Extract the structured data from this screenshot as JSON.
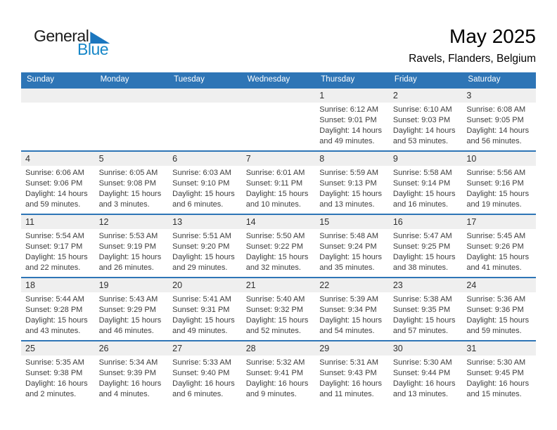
{
  "logo": {
    "general_text": "General",
    "blue_text": "Blue"
  },
  "header": {
    "title": "May 2025",
    "subtitle": "Ravels, Flanders, Belgium"
  },
  "colors": {
    "header_blue": "#2E75B6",
    "row_separator_blue": "#2E75B6",
    "day_band_gray": "#EFEFEF",
    "logo_text_blue": "#1787C8",
    "logo_triangle_blue": "#1B76BE",
    "body_text": "#3D3D3D"
  },
  "calendar": {
    "day_headers": [
      "Sunday",
      "Monday",
      "Tuesday",
      "Wednesday",
      "Thursday",
      "Friday",
      "Saturday"
    ],
    "weeks": [
      [
        null,
        null,
        null,
        null,
        {
          "date": "1",
          "lines": [
            "Sunrise: 6:12 AM",
            "Sunset: 9:01 PM",
            "Daylight: 14 hours",
            "and 49 minutes."
          ]
        },
        {
          "date": "2",
          "lines": [
            "Sunrise: 6:10 AM",
            "Sunset: 9:03 PM",
            "Daylight: 14 hours",
            "and 53 minutes."
          ]
        },
        {
          "date": "3",
          "lines": [
            "Sunrise: 6:08 AM",
            "Sunset: 9:05 PM",
            "Daylight: 14 hours",
            "and 56 minutes."
          ]
        }
      ],
      [
        {
          "date": "4",
          "lines": [
            "Sunrise: 6:06 AM",
            "Sunset: 9:06 PM",
            "Daylight: 14 hours",
            "and 59 minutes."
          ]
        },
        {
          "date": "5",
          "lines": [
            "Sunrise: 6:05 AM",
            "Sunset: 9:08 PM",
            "Daylight: 15 hours",
            "and 3 minutes."
          ]
        },
        {
          "date": "6",
          "lines": [
            "Sunrise: 6:03 AM",
            "Sunset: 9:10 PM",
            "Daylight: 15 hours",
            "and 6 minutes."
          ]
        },
        {
          "date": "7",
          "lines": [
            "Sunrise: 6:01 AM",
            "Sunset: 9:11 PM",
            "Daylight: 15 hours",
            "and 10 minutes."
          ]
        },
        {
          "date": "8",
          "lines": [
            "Sunrise: 5:59 AM",
            "Sunset: 9:13 PM",
            "Daylight: 15 hours",
            "and 13 minutes."
          ]
        },
        {
          "date": "9",
          "lines": [
            "Sunrise: 5:58 AM",
            "Sunset: 9:14 PM",
            "Daylight: 15 hours",
            "and 16 minutes."
          ]
        },
        {
          "date": "10",
          "lines": [
            "Sunrise: 5:56 AM",
            "Sunset: 9:16 PM",
            "Daylight: 15 hours",
            "and 19 minutes."
          ]
        }
      ],
      [
        {
          "date": "11",
          "lines": [
            "Sunrise: 5:54 AM",
            "Sunset: 9:17 PM",
            "Daylight: 15 hours",
            "and 22 minutes."
          ]
        },
        {
          "date": "12",
          "lines": [
            "Sunrise: 5:53 AM",
            "Sunset: 9:19 PM",
            "Daylight: 15 hours",
            "and 26 minutes."
          ]
        },
        {
          "date": "13",
          "lines": [
            "Sunrise: 5:51 AM",
            "Sunset: 9:20 PM",
            "Daylight: 15 hours",
            "and 29 minutes."
          ]
        },
        {
          "date": "14",
          "lines": [
            "Sunrise: 5:50 AM",
            "Sunset: 9:22 PM",
            "Daylight: 15 hours",
            "and 32 minutes."
          ]
        },
        {
          "date": "15",
          "lines": [
            "Sunrise: 5:48 AM",
            "Sunset: 9:24 PM",
            "Daylight: 15 hours",
            "and 35 minutes."
          ]
        },
        {
          "date": "16",
          "lines": [
            "Sunrise: 5:47 AM",
            "Sunset: 9:25 PM",
            "Daylight: 15 hours",
            "and 38 minutes."
          ]
        },
        {
          "date": "17",
          "lines": [
            "Sunrise: 5:45 AM",
            "Sunset: 9:26 PM",
            "Daylight: 15 hours",
            "and 41 minutes."
          ]
        }
      ],
      [
        {
          "date": "18",
          "lines": [
            "Sunrise: 5:44 AM",
            "Sunset: 9:28 PM",
            "Daylight: 15 hours",
            "and 43 minutes."
          ]
        },
        {
          "date": "19",
          "lines": [
            "Sunrise: 5:43 AM",
            "Sunset: 9:29 PM",
            "Daylight: 15 hours",
            "and 46 minutes."
          ]
        },
        {
          "date": "20",
          "lines": [
            "Sunrise: 5:41 AM",
            "Sunset: 9:31 PM",
            "Daylight: 15 hours",
            "and 49 minutes."
          ]
        },
        {
          "date": "21",
          "lines": [
            "Sunrise: 5:40 AM",
            "Sunset: 9:32 PM",
            "Daylight: 15 hours",
            "and 52 minutes."
          ]
        },
        {
          "date": "22",
          "lines": [
            "Sunrise: 5:39 AM",
            "Sunset: 9:34 PM",
            "Daylight: 15 hours",
            "and 54 minutes."
          ]
        },
        {
          "date": "23",
          "lines": [
            "Sunrise: 5:38 AM",
            "Sunset: 9:35 PM",
            "Daylight: 15 hours",
            "and 57 minutes."
          ]
        },
        {
          "date": "24",
          "lines": [
            "Sunrise: 5:36 AM",
            "Sunset: 9:36 PM",
            "Daylight: 15 hours",
            "and 59 minutes."
          ]
        }
      ],
      [
        {
          "date": "25",
          "lines": [
            "Sunrise: 5:35 AM",
            "Sunset: 9:38 PM",
            "Daylight: 16 hours",
            "and 2 minutes."
          ]
        },
        {
          "date": "26",
          "lines": [
            "Sunrise: 5:34 AM",
            "Sunset: 9:39 PM",
            "Daylight: 16 hours",
            "and 4 minutes."
          ]
        },
        {
          "date": "27",
          "lines": [
            "Sunrise: 5:33 AM",
            "Sunset: 9:40 PM",
            "Daylight: 16 hours",
            "and 6 minutes."
          ]
        },
        {
          "date": "28",
          "lines": [
            "Sunrise: 5:32 AM",
            "Sunset: 9:41 PM",
            "Daylight: 16 hours",
            "and 9 minutes."
          ]
        },
        {
          "date": "29",
          "lines": [
            "Sunrise: 5:31 AM",
            "Sunset: 9:43 PM",
            "Daylight: 16 hours",
            "and 11 minutes."
          ]
        },
        {
          "date": "30",
          "lines": [
            "Sunrise: 5:30 AM",
            "Sunset: 9:44 PM",
            "Daylight: 16 hours",
            "and 13 minutes."
          ]
        },
        {
          "date": "31",
          "lines": [
            "Sunrise: 5:30 AM",
            "Sunset: 9:45 PM",
            "Daylight: 16 hours",
            "and 15 minutes."
          ]
        }
      ]
    ]
  }
}
